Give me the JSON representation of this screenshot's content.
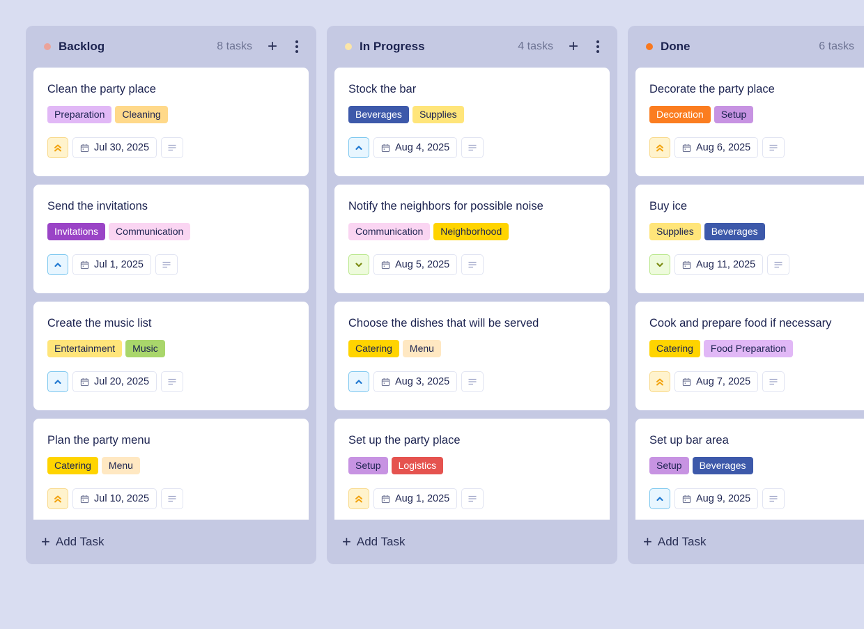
{
  "board": {
    "columns": [
      {
        "title": "Backlog",
        "count": "8 tasks",
        "dot_color": "#eba39a",
        "add_task_label": "Add Task",
        "cards": [
          {
            "title": "Clean the party place",
            "tags": [
              {
                "label": "Preparation",
                "bg": "#e1b8f6",
                "fg": "#1c2350"
              },
              {
                "label": "Cleaning",
                "bg": "#ffd98a",
                "fg": "#1c2350"
              }
            ],
            "priority": "high",
            "date": "Jul 30, 2025"
          },
          {
            "title": "Send the invitations",
            "tags": [
              {
                "label": "Invitations",
                "bg": "#9a44c6",
                "fg": "#ffffff"
              },
              {
                "label": "Communication",
                "bg": "#fad5f2",
                "fg": "#1c2350"
              }
            ],
            "priority": "medium",
            "date": "Jul 1, 2025"
          },
          {
            "title": "Create the music list",
            "tags": [
              {
                "label": "Entertainment",
                "bg": "#ffe57a",
                "fg": "#1c2350"
              },
              {
                "label": "Music",
                "bg": "#a9d66b",
                "fg": "#1c2350"
              }
            ],
            "priority": "medium",
            "date": "Jul 20, 2025"
          },
          {
            "title": "Plan the party menu",
            "tags": [
              {
                "label": "Catering",
                "bg": "#ffd400",
                "fg": "#1c2350"
              },
              {
                "label": "Menu",
                "bg": "#ffe8c2",
                "fg": "#1c2350"
              }
            ],
            "priority": "high",
            "date": "Jul 10, 2025"
          }
        ]
      },
      {
        "title": "In Progress",
        "count": "4 tasks",
        "dot_color": "#fbe5a8",
        "add_task_label": "Add Task",
        "cards": [
          {
            "title": "Stock the bar",
            "tags": [
              {
                "label": "Beverages",
                "bg": "#3d59aa",
                "fg": "#ffffff"
              },
              {
                "label": "Supplies",
                "bg": "#ffe57a",
                "fg": "#1c2350"
              }
            ],
            "priority": "medium",
            "date": "Aug 4, 2025"
          },
          {
            "title": "Notify the neighbors for possible noise",
            "tags": [
              {
                "label": "Communication",
                "bg": "#fad5f2",
                "fg": "#1c2350"
              },
              {
                "label": "Neighborhood",
                "bg": "#ffd400",
                "fg": "#1c2350"
              }
            ],
            "priority": "low",
            "date": "Aug 5, 2025"
          },
          {
            "title": "Choose the dishes that will be served",
            "tags": [
              {
                "label": "Catering",
                "bg": "#ffd400",
                "fg": "#1c2350"
              },
              {
                "label": "Menu",
                "bg": "#ffe8c2",
                "fg": "#1c2350"
              }
            ],
            "priority": "medium",
            "date": "Aug 3, 2025"
          },
          {
            "title": "Set up the party place",
            "tags": [
              {
                "label": "Setup",
                "bg": "#c793e2",
                "fg": "#1c2350"
              },
              {
                "label": "Logistics",
                "bg": "#e5534f",
                "fg": "#ffffff"
              }
            ],
            "priority": "high",
            "date": "Aug 1, 2025"
          }
        ]
      },
      {
        "title": "Done",
        "count": "6 tasks",
        "dot_color": "#f9781e",
        "add_task_label": "Add Task",
        "cards": [
          {
            "title": "Decorate the party place",
            "tags": [
              {
                "label": "Decoration",
                "bg": "#fb7d20",
                "fg": "#ffffff"
              },
              {
                "label": "Setup",
                "bg": "#c793e2",
                "fg": "#1c2350"
              }
            ],
            "priority": "high",
            "date": "Aug 6, 2025"
          },
          {
            "title": "Buy ice",
            "tags": [
              {
                "label": "Supplies",
                "bg": "#ffe57a",
                "fg": "#1c2350"
              },
              {
                "label": "Beverages",
                "bg": "#3d59aa",
                "fg": "#ffffff"
              }
            ],
            "priority": "low",
            "date": "Aug 11, 2025"
          },
          {
            "title": "Cook and prepare food if necessary",
            "tags": [
              {
                "label": "Catering",
                "bg": "#ffd400",
                "fg": "#1c2350"
              },
              {
                "label": "Food Preparation",
                "bg": "#e1b8f6",
                "fg": "#1c2350"
              }
            ],
            "priority": "high",
            "date": "Aug 7, 2025"
          },
          {
            "title": "Set up bar area",
            "tags": [
              {
                "label": "Setup",
                "bg": "#c793e2",
                "fg": "#1c2350"
              },
              {
                "label": "Beverages",
                "bg": "#3d59aa",
                "fg": "#ffffff"
              }
            ],
            "priority": "medium",
            "date": "Aug 9, 2025"
          }
        ]
      }
    ]
  },
  "icons": {
    "add": "+",
    "more": "vertical-dots",
    "priority_high": "chevrons-up",
    "priority_medium": "chevron-up",
    "priority_low": "chevron-down",
    "calendar": "calendar",
    "notes": "text-lines"
  }
}
